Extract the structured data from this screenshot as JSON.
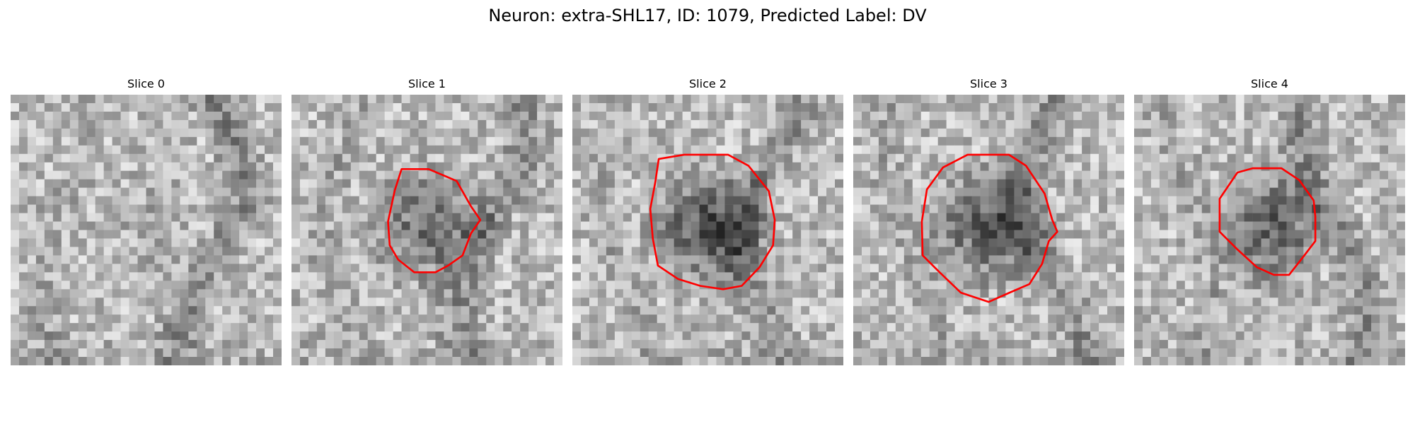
{
  "figure": {
    "title": "Neuron: extra-SHL17, ID: 1079, Predicted Label: DV"
  },
  "colors": {
    "contour": "#ff0000",
    "background": "#ffffff"
  },
  "slices": [
    {
      "title": "Slice 0",
      "has_contour": false,
      "seed": 11,
      "dark_blob_strength": 0.1
    },
    {
      "title": "Slice 1",
      "has_contour": true,
      "seed": 23,
      "dark_blob_strength": 0.55
    },
    {
      "title": "Slice 2",
      "has_contour": true,
      "seed": 37,
      "dark_blob_strength": 0.75
    },
    {
      "title": "Slice 3",
      "has_contour": true,
      "seed": 53,
      "dark_blob_strength": 0.68
    },
    {
      "title": "Slice 4",
      "has_contour": true,
      "seed": 71,
      "dark_blob_strength": 0.62
    }
  ]
}
